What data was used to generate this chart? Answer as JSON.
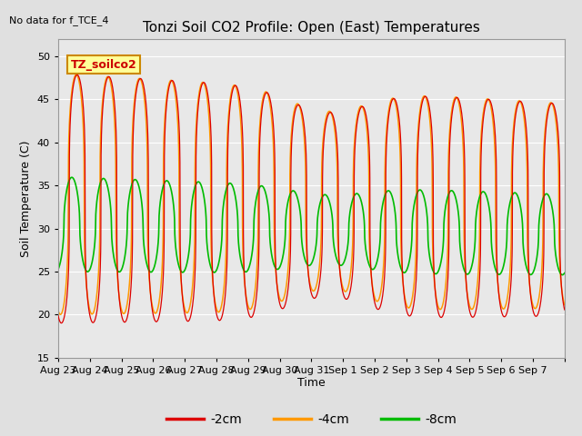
{
  "title": "Tonzi Soil CO2 Profile: Open (East) Temperatures",
  "no_data_label": "No data for f_TCE_4",
  "ylabel": "Soil Temperature (C)",
  "xlabel": "Time",
  "ylim": [
    15,
    52
  ],
  "yticks": [
    15,
    20,
    25,
    30,
    35,
    40,
    45,
    50
  ],
  "annotation_box": "TZ_soilco2",
  "legend_labels": [
    "-2cm",
    "-4cm",
    "-8cm"
  ],
  "line_colors": [
    "#dd0000",
    "#ff9900",
    "#00bb00"
  ],
  "background_color": "#e0e0e0",
  "plot_bg_color": "#e8e8e8",
  "n_days": 16,
  "num_points": 3840,
  "x_tick_labels": [
    "Aug 23",
    "Aug 24",
    "Aug 25",
    "Aug 26",
    "Aug 27",
    "Aug 28",
    "Aug 29",
    "Aug 30",
    "Aug 31",
    "Sep 1",
    "Sep 2",
    "Sep 3",
    "Sep 4",
    "Sep 5",
    "Sep 6",
    "Sep 7"
  ],
  "grid_color": "#ffffff"
}
